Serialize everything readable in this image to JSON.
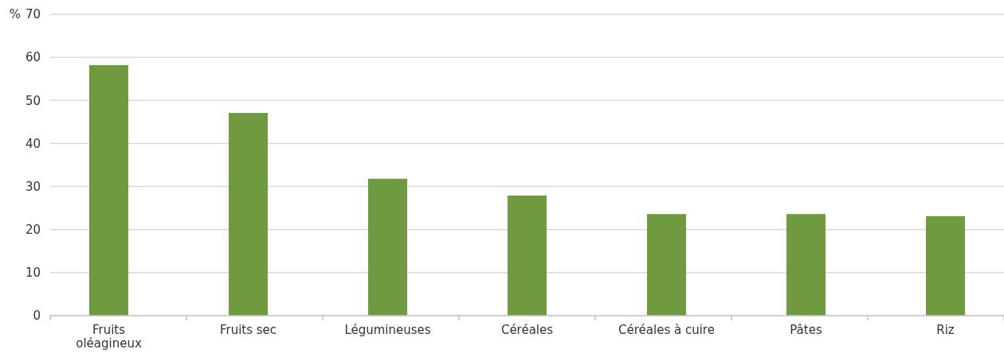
{
  "chart_data": {
    "type": "bar",
    "ylabel": "%",
    "categories": [
      "Fruits oléagineux",
      "Fruits sec",
      "Légumineuses",
      "Céréales",
      "Céréales à cuire",
      "Pâtes",
      "Riz"
    ],
    "values": [
      58.2,
      47.1,
      31.8,
      27.9,
      23.6,
      23.6,
      23.1
    ],
    "color": "#709a3f",
    "ylim": [
      0,
      70
    ],
    "yticks": [
      0,
      10,
      20,
      30,
      40,
      50,
      60,
      70
    ],
    "grid": "y"
  }
}
